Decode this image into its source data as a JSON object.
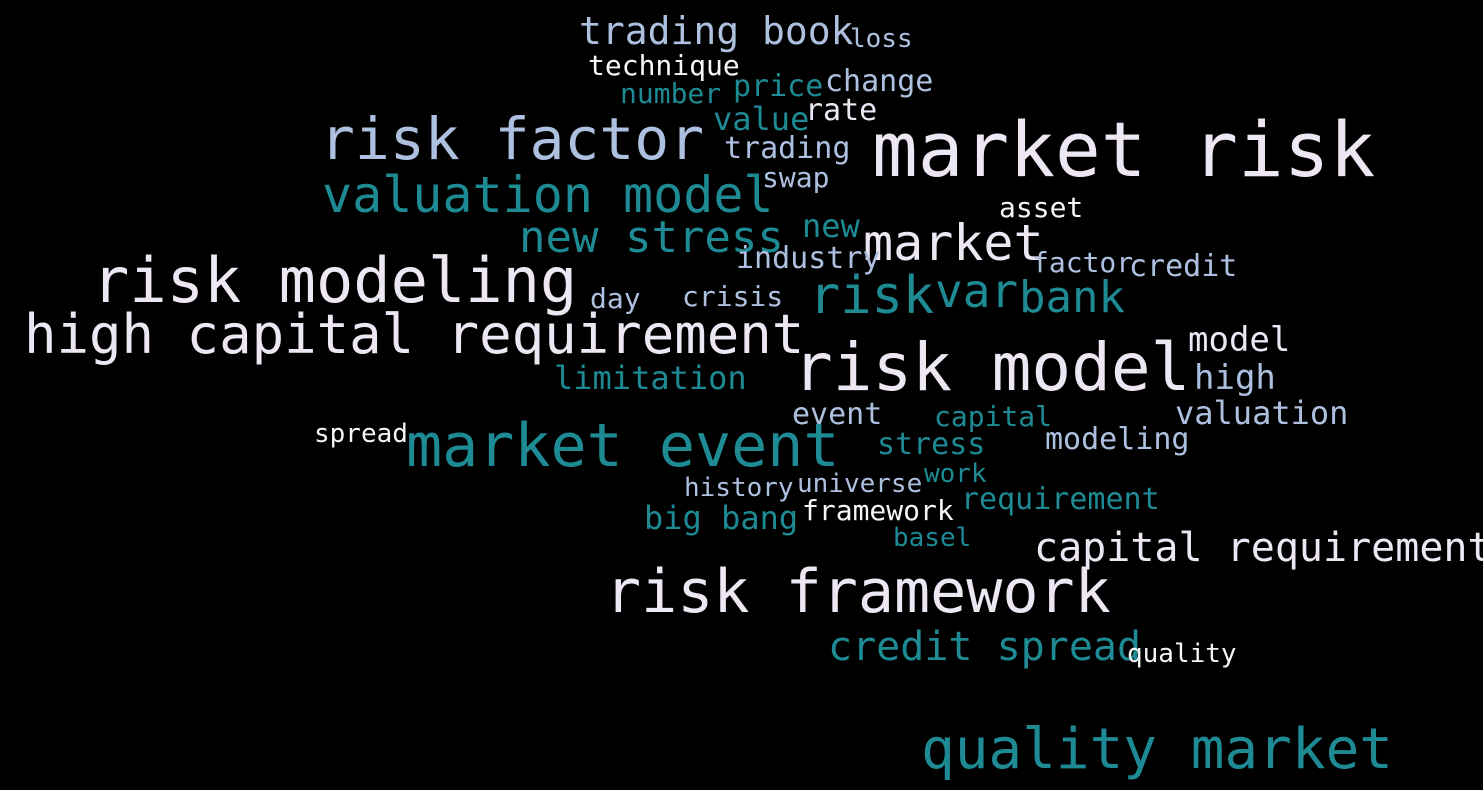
{
  "palette": {
    "background": "#000000",
    "lavender": "#ede6f3",
    "light_blue": "#aec0df",
    "teal": "#1e8a94",
    "white": "#f5f5f5"
  },
  "words": [
    {
      "text": "market risk",
      "color": "lavender"
    },
    {
      "text": "risk factor",
      "color": "light_blue"
    },
    {
      "text": "risk model",
      "color": "lavender"
    },
    {
      "text": "risk modeling",
      "color": "lavender"
    },
    {
      "text": "high capital requirement",
      "color": "lavender"
    },
    {
      "text": "market event",
      "color": "teal"
    },
    {
      "text": "risk framework",
      "color": "lavender"
    },
    {
      "text": "quality market",
      "color": "teal"
    },
    {
      "text": "valuation model",
      "color": "teal"
    },
    {
      "text": "trading book",
      "color": "light_blue"
    },
    {
      "text": "new stress",
      "color": "teal"
    },
    {
      "text": "market",
      "color": "lavender"
    },
    {
      "text": "risk",
      "color": "teal"
    },
    {
      "text": "var",
      "color": "teal"
    },
    {
      "text": "bank",
      "color": "teal"
    },
    {
      "text": "capital requirement",
      "color": "lavender"
    },
    {
      "text": "credit spread",
      "color": "teal"
    },
    {
      "text": "model",
      "color": "lavender"
    },
    {
      "text": "high",
      "color": "light_blue"
    },
    {
      "text": "valuation",
      "color": "light_blue"
    },
    {
      "text": "limitation",
      "color": "teal"
    },
    {
      "text": "big bang",
      "color": "teal"
    },
    {
      "text": "technique",
      "color": "white"
    },
    {
      "text": "loss",
      "color": "light_blue"
    },
    {
      "text": "price",
      "color": "teal"
    },
    {
      "text": "change",
      "color": "light_blue"
    },
    {
      "text": "number",
      "color": "teal"
    },
    {
      "text": "value",
      "color": "teal"
    },
    {
      "text": "rate",
      "color": "lavender"
    },
    {
      "text": "trading",
      "color": "light_blue"
    },
    {
      "text": "swap",
      "color": "light_blue"
    },
    {
      "text": "asset",
      "color": "white"
    },
    {
      "text": "new",
      "color": "teal"
    },
    {
      "text": "industry",
      "color": "light_blue"
    },
    {
      "text": "factor",
      "color": "light_blue"
    },
    {
      "text": "credit",
      "color": "light_blue"
    },
    {
      "text": "day",
      "color": "light_blue"
    },
    {
      "text": "crisis",
      "color": "light_blue"
    },
    {
      "text": "event",
      "color": "light_blue"
    },
    {
      "text": "capital",
      "color": "teal"
    },
    {
      "text": "spread",
      "color": "white"
    },
    {
      "text": "stress",
      "color": "teal"
    },
    {
      "text": "modeling",
      "color": "light_blue"
    },
    {
      "text": "work",
      "color": "teal"
    },
    {
      "text": "history",
      "color": "light_blue"
    },
    {
      "text": "universe",
      "color": "light_blue"
    },
    {
      "text": "requirement",
      "color": "teal"
    },
    {
      "text": "framework",
      "color": "white"
    },
    {
      "text": "basel",
      "color": "teal"
    },
    {
      "text": "quality",
      "color": "white"
    }
  ]
}
